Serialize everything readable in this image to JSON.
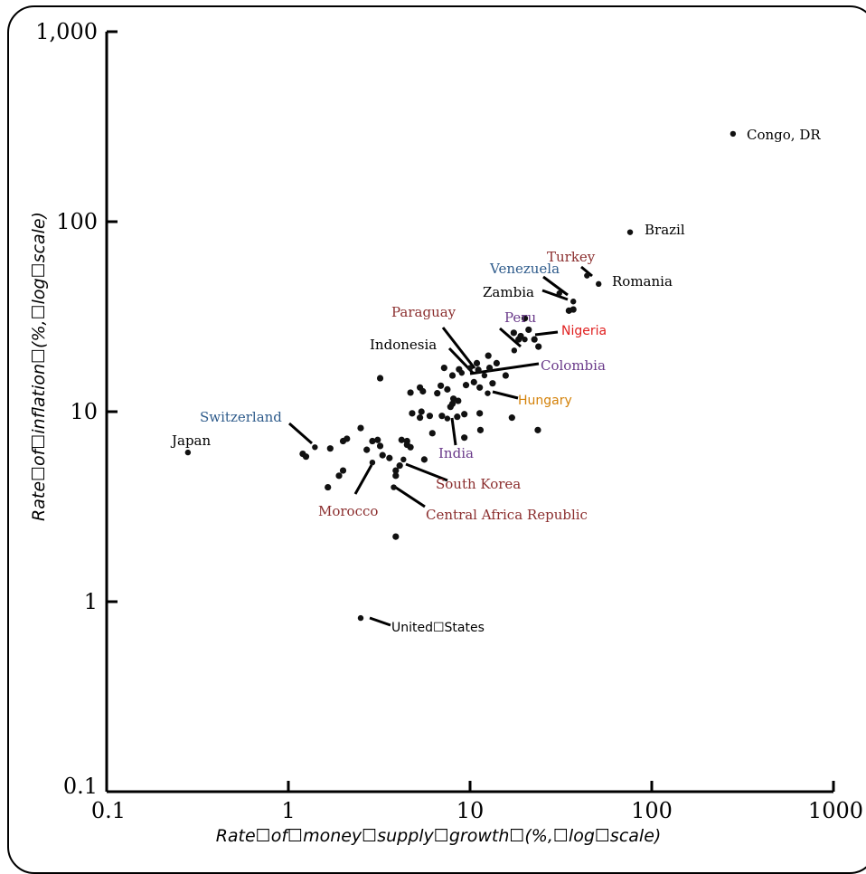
{
  "chart_data": {
    "type": "scatter",
    "title": "",
    "xlabel": "Rate☐of☐money☐supply☐growth☐(%,☐log☐scale)",
    "ylabel": "Rate☐of☐inflation☐(%,☐log☐scale)",
    "xscale": "log",
    "yscale": "log",
    "xlim": [
      0.1,
      1000
    ],
    "ylim": [
      0.1,
      1000
    ],
    "xticks": [
      {
        "value": 0.1,
        "label": "0.1"
      },
      {
        "value": 1,
        "label": "1"
      },
      {
        "value": 10,
        "label": "10"
      },
      {
        "value": 100,
        "label": "100"
      },
      {
        "value": 1000,
        "label": "1000"
      }
    ],
    "yticks": [
      {
        "value": 0.1,
        "label": "0.1"
      },
      {
        "value": 1,
        "label": "1"
      },
      {
        "value": 10,
        "label": "10"
      },
      {
        "value": 100,
        "label": "100"
      },
      {
        "value": 1000,
        "label": "1,000"
      }
    ],
    "grid": false,
    "labeled_points": [
      {
        "name": "Congo, DR",
        "x": 280,
        "y": 290,
        "color": "#000000"
      },
      {
        "name": "Brazil",
        "x": 76,
        "y": 88,
        "color": "#000000"
      },
      {
        "name": "Romania",
        "x": 51,
        "y": 47,
        "color": "#000000"
      },
      {
        "name": "Turkey",
        "x": 44,
        "y": 52,
        "color": "#8b2e2e"
      },
      {
        "name": "Venezuela",
        "x": 37,
        "y": 38,
        "color": "#2e5b8b"
      },
      {
        "name": "Zambia",
        "x": 31,
        "y": 42,
        "color": "#000000"
      },
      {
        "name": "Nigeria",
        "x": 20,
        "y": 24,
        "color": "#e02020"
      },
      {
        "name": "Peru",
        "x": 17.5,
        "y": 21,
        "color": "#6a3a8a"
      },
      {
        "name": "Paraguay",
        "x": 10,
        "y": 17,
        "color": "#8b2e2e"
      },
      {
        "name": "Indonesia",
        "x": 9,
        "y": 16,
        "color": "#000000"
      },
      {
        "name": "Colombia",
        "x": 12,
        "y": 15.5,
        "color": "#6a3a8a"
      },
      {
        "name": "Hungary",
        "x": 12.5,
        "y": 12.5,
        "color": "#d4820a"
      },
      {
        "name": "India",
        "x": 7.5,
        "y": 9.2,
        "color": "#6a3a8a"
      },
      {
        "name": "Switzerland",
        "x": 1.4,
        "y": 6.5,
        "color": "#2e5b8b"
      },
      {
        "name": "Japan",
        "x": 0.28,
        "y": 6.1,
        "color": "#000000"
      },
      {
        "name": "South Korea",
        "x": 4.3,
        "y": 5.6,
        "color": "#8b2e2e"
      },
      {
        "name": "Morocco",
        "x": 2.9,
        "y": 5.4,
        "color": "#8b2e2e"
      },
      {
        "name": "Central Africa Republic",
        "x": 3.8,
        "y": 4,
        "color": "#8b2e2e"
      },
      {
        "name": "United☐States",
        "x": 2.5,
        "y": 0.82,
        "color": "#000000"
      }
    ],
    "points": [
      [
        1.2,
        6.0
      ],
      [
        1.25,
        5.8
      ],
      [
        1.7,
        6.4
      ],
      [
        1.65,
        4.0
      ],
      [
        1.9,
        4.6
      ],
      [
        2.0,
        4.9
      ],
      [
        2.0,
        7.0
      ],
      [
        2.1,
        7.2
      ],
      [
        2.5,
        8.2
      ],
      [
        2.7,
        6.3
      ],
      [
        2.9,
        7.0
      ],
      [
        3.1,
        7.1
      ],
      [
        3.2,
        6.6
      ],
      [
        3.3,
        5.9
      ],
      [
        3.2,
        15.0
      ],
      [
        3.6,
        5.7
      ],
      [
        3.9,
        4.9
      ],
      [
        3.9,
        4.6
      ],
      [
        3.9,
        2.2
      ],
      [
        4.2,
        7.1
      ],
      [
        4.1,
        5.2
      ],
      [
        4.5,
        7.0
      ],
      [
        4.5,
        6.7
      ],
      [
        4.7,
        6.5
      ],
      [
        4.8,
        9.8
      ],
      [
        4.7,
        12.6
      ],
      [
        5.3,
        9.3
      ],
      [
        5.4,
        10.0
      ],
      [
        5.3,
        13.4
      ],
      [
        5.5,
        12.8
      ],
      [
        5.6,
        5.6
      ],
      [
        6.0,
        9.5
      ],
      [
        6.2,
        7.7
      ],
      [
        6.6,
        12.5
      ],
      [
        6.9,
        13.7
      ],
      [
        7.0,
        9.5
      ],
      [
        7.2,
        17.0
      ],
      [
        7.5,
        13.1
      ],
      [
        8.1,
        11.7
      ],
      [
        7.8,
        10.6
      ],
      [
        8.0,
        11.0
      ],
      [
        8.5,
        9.4
      ],
      [
        8.6,
        11.4
      ],
      [
        8.0,
        15.5
      ],
      [
        8.7,
        16.7
      ],
      [
        9.3,
        9.7
      ],
      [
        9.3,
        7.3
      ],
      [
        9.5,
        13.8
      ],
      [
        10.5,
        14.3
      ],
      [
        10.9,
        18.0
      ],
      [
        11.1,
        16.6
      ],
      [
        11.3,
        13.4
      ],
      [
        11.3,
        9.8
      ],
      [
        11.4,
        8.0
      ],
      [
        12.6,
        19.7
      ],
      [
        12.8,
        17.0
      ],
      [
        13.3,
        14.1
      ],
      [
        14.0,
        18.0
      ],
      [
        15.7,
        15.5
      ],
      [
        17.0,
        9.3
      ],
      [
        17.4,
        26.0
      ],
      [
        18.5,
        24.0
      ],
      [
        19.0,
        25.0
      ],
      [
        20.0,
        31.0
      ],
      [
        21.0,
        27.0
      ],
      [
        22.6,
        24.0
      ],
      [
        23.8,
        22.0
      ],
      [
        23.6,
        8.0
      ],
      [
        35.0,
        34.0
      ],
      [
        37.0,
        34.5
      ]
    ]
  }
}
